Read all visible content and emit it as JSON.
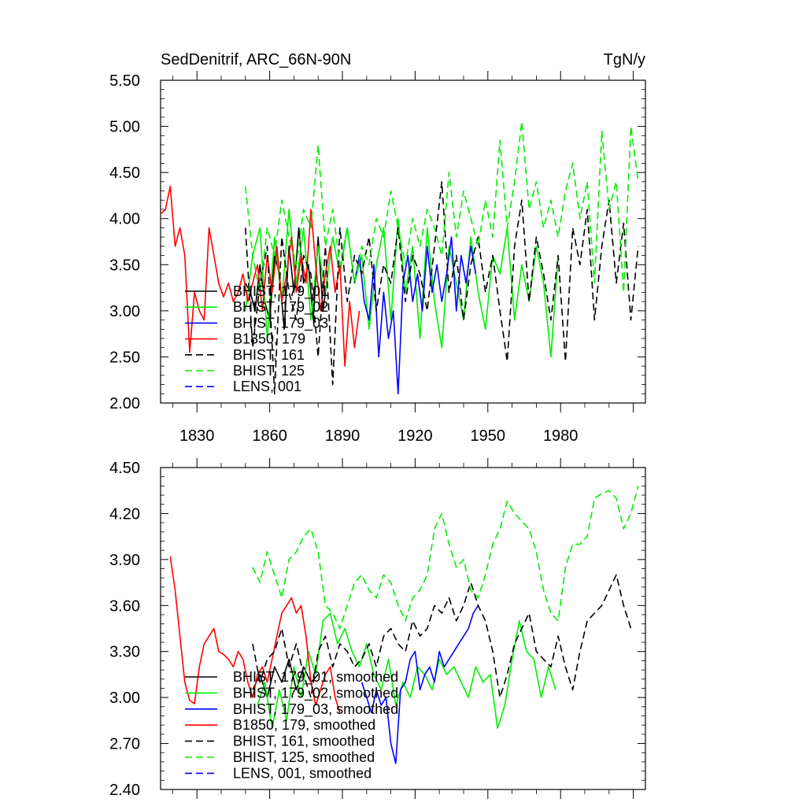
{
  "chart_data": [
    {
      "type": "line",
      "title": "SedDenitrif, ARC_66N-90N",
      "units": "TgN/y",
      "xlim": [
        1815,
        2015
      ],
      "ylim": [
        2.0,
        5.5
      ],
      "x_ticks": [
        1830,
        1860,
        1890,
        1920,
        1950,
        1980
      ],
      "y_ticks": [
        "2.00",
        "2.50",
        "3.00",
        "3.50",
        "4.00",
        "4.50",
        "5.00",
        "5.50"
      ],
      "legend_position": "lower-left",
      "series": [
        {
          "name": "BHIST, 179_01",
          "color": "#000000",
          "dash": "solid",
          "x": [
            1850,
            1852,
            1854,
            1856,
            1858,
            1860,
            1862,
            1864,
            1866,
            1868,
            1870,
            1872,
            1874,
            1876,
            1878,
            1880,
            1882,
            1884
          ],
          "y": [
            3.3,
            3.2,
            3.0,
            3.5,
            3.1,
            2.9,
            3.6,
            3.4,
            2.8,
            3.7,
            3.2,
            3.9,
            3.3,
            3.5,
            2.9,
            3.8,
            3.0,
            3.4
          ]
        },
        {
          "name": "BHIST, 179_02",
          "color": "#00ee00",
          "dash": "solid",
          "x": [
            1850,
            1853,
            1856,
            1859,
            1862,
            1865,
            1868,
            1871,
            1874,
            1877,
            1880,
            1883,
            1886,
            1889,
            1892,
            1895,
            1898,
            1901,
            1904,
            1907,
            1910,
            1913,
            1916,
            1919,
            1922,
            1925,
            1928,
            1931,
            1934,
            1937,
            1940,
            1943,
            1946,
            1949,
            1952,
            1955,
            1958,
            1961,
            1964,
            1967,
            1970,
            1973,
            1976,
            1979
          ],
          "y": [
            3.0,
            3.6,
            3.9,
            2.7,
            3.8,
            3.1,
            4.1,
            3.3,
            3.9,
            2.9,
            3.7,
            3.2,
            3.8,
            3.4,
            3.9,
            3.3,
            3.6,
            2.8,
            3.5,
            3.9,
            2.9,
            4.0,
            3.2,
            3.7,
            2.7,
            3.9,
            3.1,
            2.6,
            3.7,
            3.3,
            2.9,
            3.8,
            3.2,
            2.8,
            3.6,
            3.4,
            3.9,
            2.9,
            3.5,
            3.1,
            3.7,
            3.3,
            2.5,
            3.6
          ]
        },
        {
          "name": "BHIST, 179_03",
          "color": "#0000ff",
          "dash": "solid",
          "x": [
            1895,
            1897,
            1899,
            1901,
            1903,
            1905,
            1907,
            1909,
            1911,
            1913,
            1915,
            1917,
            1919,
            1921,
            1923,
            1925,
            1927,
            1929,
            1931,
            1933,
            1935,
            1937,
            1939,
            1941,
            1943,
            1945
          ],
          "y": [
            3.3,
            3.6,
            3.1,
            2.9,
            3.5,
            2.5,
            3.2,
            2.7,
            3.0,
            2.1,
            3.3,
            3.6,
            3.1,
            3.4,
            3.0,
            3.7,
            3.2,
            3.5,
            3.1,
            3.4,
            3.8,
            3.0,
            3.6,
            3.3,
            3.7,
            3.4
          ]
        },
        {
          "name": "B1850, 179",
          "color": "#ff0000",
          "dash": "solid",
          "x": [
            1815,
            1817,
            1819,
            1821,
            1823,
            1825,
            1827,
            1829,
            1831,
            1833,
            1835,
            1837,
            1839,
            1841,
            1843,
            1845,
            1847,
            1849,
            1851,
            1853,
            1855,
            1857,
            1859,
            1861,
            1863,
            1865,
            1867,
            1869,
            1871,
            1873,
            1875,
            1877,
            1879,
            1881,
            1883,
            1885,
            1887,
            1889,
            1891,
            1893,
            1895,
            1897
          ],
          "y": [
            4.05,
            4.1,
            4.35,
            3.7,
            3.9,
            3.6,
            2.55,
            3.2,
            3.0,
            2.9,
            3.9,
            3.6,
            3.3,
            3.15,
            3.3,
            3.1,
            3.2,
            3.4,
            3.1,
            3.3,
            3.5,
            3.0,
            3.6,
            3.2,
            3.7,
            3.1,
            3.4,
            3.8,
            3.2,
            3.6,
            3.3,
            4.1,
            3.5,
            3.0,
            3.4,
            3.7,
            3.2,
            3.5,
            2.4,
            3.1,
            2.6,
            3.0
          ]
        },
        {
          "name": "BHIST, 161",
          "color": "#000000",
          "dash": "dashed",
          "x": [
            1850,
            1853,
            1856,
            1859,
            1862,
            1865,
            1868,
            1871,
            1874,
            1877,
            1880,
            1883,
            1886,
            1889,
            1892,
            1895,
            1898,
            1901,
            1904,
            1907,
            1910,
            1913,
            1916,
            1919,
            1922,
            1925,
            1928,
            1931,
            1934,
            1937,
            1940,
            1943,
            1946,
            1949,
            1952,
            1955,
            1958,
            1961,
            1964,
            1967,
            1970,
            1973,
            1976,
            1979,
            1982,
            1985,
            1988,
            1991,
            1994,
            1997,
            2000,
            2003,
            2006,
            2009,
            2012
          ],
          "y": [
            3.9,
            2.6,
            3.3,
            3.7,
            2.1,
            3.8,
            3.2,
            2.9,
            3.6,
            3.4,
            2.5,
            3.7,
            2.2,
            3.9,
            3.1,
            3.6,
            3.4,
            3.8,
            3.0,
            3.5,
            3.3,
            3.9,
            3.1,
            3.6,
            3.4,
            3.0,
            3.7,
            4.4,
            3.2,
            3.6,
            2.9,
            3.5,
            3.8,
            3.2,
            3.6,
            3.0,
            2.45,
            3.7,
            4.2,
            3.1,
            3.8,
            3.4,
            2.9,
            3.6,
            2.45,
            3.9,
            3.5,
            4.1,
            2.9,
            3.7,
            4.2,
            3.3,
            3.95,
            2.9,
            3.7
          ]
        },
        {
          "name": "BHIST, 125",
          "color": "#00ee00",
          "dash": "dashed",
          "x": [
            1850,
            1853,
            1856,
            1859,
            1862,
            1865,
            1868,
            1871,
            1874,
            1877,
            1880,
            1883,
            1886,
            1889,
            1892,
            1895,
            1898,
            1901,
            1904,
            1907,
            1910,
            1913,
            1916,
            1919,
            1922,
            1925,
            1928,
            1931,
            1934,
            1937,
            1940,
            1943,
            1946,
            1949,
            1952,
            1955,
            1958,
            1961,
            1964,
            1967,
            1970,
            1973,
            1976,
            1979,
            1982,
            1985,
            1988,
            1991,
            1994,
            1997,
            2000,
            2003,
            2006,
            2009,
            2012
          ],
          "y": [
            4.35,
            3.6,
            3.2,
            3.9,
            3.6,
            4.2,
            3.8,
            3.5,
            4.1,
            3.9,
            4.8,
            3.7,
            4.1,
            3.5,
            3.9,
            3.3,
            3.7,
            3.5,
            4.0,
            3.8,
            4.3,
            3.9,
            3.5,
            4.0,
            3.7,
            4.1,
            3.9,
            3.6,
            4.5,
            3.8,
            4.3,
            4.0,
            3.7,
            4.2,
            3.8,
            4.85,
            3.9,
            4.4,
            5.05,
            4.1,
            4.4,
            3.9,
            4.2,
            3.8,
            4.3,
            4.6,
            4.0,
            4.4,
            3.3,
            4.95,
            4.1,
            4.4,
            3.2,
            5.0,
            4.4
          ]
        },
        {
          "name": "LENS, 001",
          "color": "#0000ff",
          "dash": "dashed",
          "x": [],
          "y": []
        }
      ]
    },
    {
      "type": "line",
      "xlim": [
        1815,
        2015
      ],
      "ylim": [
        2.4,
        4.5
      ],
      "y_ticks": [
        "2.40",
        "2.70",
        "3.00",
        "3.30",
        "3.60",
        "3.90",
        "4.20",
        "4.50"
      ],
      "legend_position": "lower-left",
      "series": [
        {
          "name": "BHIST, 179_01, smoothed",
          "color": "#000000",
          "dash": "solid",
          "x": [
            1853,
            1856,
            1859,
            1862,
            1865,
            1868,
            1871,
            1874,
            1877,
            1880
          ],
          "y": [
            3.05,
            3.15,
            3.0,
            3.2,
            3.1,
            3.25,
            3.05,
            3.2,
            3.1,
            3.15
          ]
        },
        {
          "name": "BHIST, 179_02, smoothed",
          "color": "#00ee00",
          "dash": "solid",
          "x": [
            1855,
            1858,
            1861,
            1864,
            1867,
            1870,
            1873,
            1876,
            1879,
            1882,
            1885,
            1888,
            1891,
            1894,
            1897,
            1900,
            1903,
            1906,
            1909,
            1912,
            1915,
            1918,
            1921,
            1924,
            1927,
            1930,
            1933,
            1936,
            1939,
            1942,
            1945,
            1948,
            1951,
            1954,
            1957,
            1960,
            1963,
            1966,
            1969,
            1972,
            1975,
            1978
          ],
          "y": [
            2.95,
            3.1,
            2.8,
            3.05,
            2.85,
            3.2,
            3.0,
            3.3,
            3.15,
            3.5,
            3.55,
            3.35,
            3.45,
            3.3,
            3.2,
            3.35,
            3.15,
            3.05,
            3.25,
            2.95,
            3.1,
            3.0,
            3.2,
            3.15,
            3.05,
            3.25,
            3.15,
            3.2,
            3.1,
            3.0,
            3.2,
            3.1,
            3.15,
            2.8,
            2.95,
            3.25,
            3.5,
            3.3,
            3.25,
            3.0,
            3.2,
            3.05
          ]
        },
        {
          "name": "BHIST, 179_03, smoothed",
          "color": "#0000ff",
          "dash": "solid",
          "x": [
            1898,
            1900,
            1902,
            1904,
            1906,
            1908,
            1910,
            1912,
            1914,
            1916,
            1918,
            1920,
            1922,
            1924,
            1926,
            1928,
            1930,
            1932,
            1934,
            1936,
            1938,
            1940,
            1942,
            1944,
            1946
          ],
          "y": [
            3.1,
            3.0,
            2.9,
            3.05,
            2.95,
            3.0,
            2.7,
            2.57,
            3.05,
            3.1,
            3.25,
            3.3,
            3.05,
            3.15,
            3.2,
            3.1,
            3.3,
            3.2,
            3.25,
            3.3,
            3.35,
            3.4,
            3.45,
            3.55,
            3.6
          ]
        },
        {
          "name": "B1850, 179, smoothed",
          "color": "#ff0000",
          "dash": "solid",
          "x": [
            1819,
            1821,
            1823,
            1825,
            1827,
            1829,
            1831,
            1833,
            1835,
            1837,
            1839,
            1841,
            1843,
            1845,
            1847,
            1849,
            1851,
            1853,
            1855,
            1857,
            1859,
            1861,
            1863,
            1865,
            1867,
            1869,
            1871,
            1873,
            1875,
            1877,
            1879,
            1881,
            1883,
            1885,
            1887,
            1889
          ],
          "y": [
            3.92,
            3.7,
            3.4,
            3.1,
            2.98,
            2.96,
            3.2,
            3.35,
            3.4,
            3.45,
            3.3,
            3.28,
            3.25,
            3.2,
            3.3,
            3.25,
            3.1,
            3.0,
            3.15,
            3.2,
            3.1,
            3.25,
            3.4,
            3.55,
            3.6,
            3.65,
            3.55,
            3.6,
            3.4,
            3.1,
            2.95,
            3.05,
            3.15,
            3.2,
            3.0,
            2.9
          ]
        },
        {
          "name": "BHIST, 161, smoothed",
          "color": "#000000",
          "dash": "dashed",
          "x": [
            1853,
            1856,
            1859,
            1862,
            1865,
            1868,
            1871,
            1874,
            1877,
            1880,
            1883,
            1886,
            1889,
            1892,
            1895,
            1898,
            1901,
            1904,
            1907,
            1910,
            1913,
            1916,
            1919,
            1922,
            1925,
            1928,
            1931,
            1934,
            1937,
            1940,
            1943,
            1946,
            1949,
            1952,
            1955,
            1958,
            1961,
            1964,
            1967,
            1970,
            1973,
            1976,
            1979,
            1982,
            1985,
            1988,
            1991,
            1994,
            1997,
            2000,
            2003,
            2006,
            2009
          ],
          "y": [
            3.35,
            3.1,
            3.25,
            3.3,
            3.45,
            3.2,
            3.35,
            3.15,
            3.0,
            3.3,
            3.4,
            3.2,
            3.35,
            3.3,
            3.2,
            3.25,
            3.35,
            3.2,
            3.4,
            3.45,
            3.35,
            3.3,
            3.5,
            3.4,
            3.45,
            3.6,
            3.55,
            3.65,
            3.5,
            3.6,
            3.75,
            3.6,
            3.5,
            3.3,
            3.0,
            3.15,
            3.35,
            3.45,
            3.55,
            3.3,
            3.25,
            3.2,
            3.4,
            3.2,
            3.05,
            3.3,
            3.5,
            3.55,
            3.6,
            3.7,
            3.8,
            3.6,
            3.45
          ]
        },
        {
          "name": "BHIST, 125, smoothed",
          "color": "#00ee00",
          "dash": "dashed",
          "x": [
            1853,
            1856,
            1859,
            1862,
            1865,
            1868,
            1871,
            1874,
            1877,
            1880,
            1883,
            1886,
            1889,
            1892,
            1895,
            1898,
            1901,
            1904,
            1907,
            1910,
            1913,
            1916,
            1919,
            1922,
            1925,
            1928,
            1931,
            1934,
            1937,
            1940,
            1943,
            1946,
            1949,
            1952,
            1955,
            1958,
            1961,
            1964,
            1967,
            1970,
            1973,
            1976,
            1979,
            1982,
            1985,
            1988,
            1991,
            1994,
            1997,
            2000,
            2003,
            2006,
            2009,
            2012
          ],
          "y": [
            3.85,
            3.75,
            3.95,
            3.8,
            3.65,
            3.9,
            3.95,
            4.05,
            4.1,
            3.95,
            3.6,
            3.55,
            3.45,
            3.6,
            3.75,
            3.8,
            3.7,
            3.65,
            3.8,
            3.75,
            3.6,
            3.5,
            3.65,
            3.7,
            3.8,
            4.1,
            4.2,
            4.0,
            3.85,
            3.9,
            3.7,
            3.65,
            3.8,
            4.0,
            4.1,
            4.28,
            4.2,
            4.15,
            4.1,
            3.95,
            3.7,
            3.55,
            3.5,
            3.85,
            4.0,
            4.0,
            4.05,
            4.3,
            4.33,
            4.35,
            4.3,
            4.1,
            4.2,
            4.38
          ]
        },
        {
          "name": "LENS, 001, smoothed",
          "color": "#0000ff",
          "dash": "dashed",
          "x": [],
          "y": []
        }
      ]
    }
  ]
}
